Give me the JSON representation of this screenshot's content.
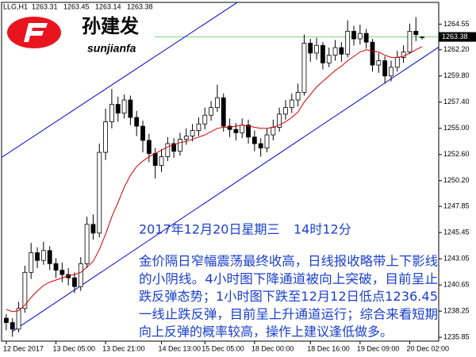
{
  "logo": {
    "name": "孙建发",
    "site": "sunjianfa"
  },
  "chart_data": {
    "type": "candlestick",
    "title": "LLG,H1",
    "categories": [
      "12 Dec 2017",
      null,
      null,
      null,
      null,
      null,
      null,
      null,
      "13 Dec 05:00",
      null,
      null,
      null,
      null,
      null,
      null,
      null,
      "13 Dec 21:00",
      null,
      null,
      null,
      null,
      null,
      null,
      null,
      null,
      "14 Dec 13:00",
      null,
      null,
      null,
      null,
      null,
      null,
      "15 Dec 05:00",
      null,
      null,
      null,
      null,
      null,
      null,
      null,
      "18 Dec 00:00",
      null,
      null,
      null,
      null,
      null,
      null,
      null,
      null,
      "18 Dec 16:00",
      null,
      null,
      null,
      null,
      null,
      null,
      null,
      "19 Dec 09:00",
      null,
      null,
      null,
      null,
      null,
      null,
      null,
      "20 Dec 02:00",
      null,
      null
    ],
    "open": [
      1237.6,
      1237.2,
      1236.6,
      1238.5,
      1241.8,
      1243.6,
      1242.9,
      1243.8,
      1242.6,
      1242.0,
      1241.6,
      1241.3,
      1240.5,
      1242.6,
      1246.2,
      1245.4,
      1252.8,
      1255.6,
      1257.2,
      1256.4,
      1257.6,
      1256.0,
      1255.2,
      1253.9,
      1252.7,
      1251.6,
      1252.4,
      1253.6,
      1252.9,
      1254.0,
      1254.3,
      1254.8,
      1255.4,
      1256.2,
      1256.9,
      1257.8,
      1255.2,
      1254.9,
      1254.6,
      1255.3,
      1254.2,
      1253.6,
      1253.2,
      1254.4,
      1255.1,
      1256.3,
      1256.9,
      1257.6,
      1258.3,
      1262.8,
      1261.9,
      1262.6,
      1261.0,
      1261.7,
      1262.4,
      1261.8,
      1263.9,
      1263.2,
      1263.7,
      1262.9,
      1260.8,
      1261.2,
      1259.8,
      1260.6,
      1261.5,
      1262.0,
      1263.9,
      1263.31
    ],
    "high": [
      1238.0,
      1237.6,
      1239.1,
      1242.4,
      1244.5,
      1244.1,
      1244.6,
      1244.2,
      1243.1,
      1242.7,
      1242.2,
      1241.8,
      1243.2,
      1246.9,
      1247.1,
      1253.6,
      1256.8,
      1258.6,
      1257.9,
      1258.1,
      1258.0,
      1256.6,
      1255.7,
      1254.5,
      1253.2,
      1253.1,
      1254.2,
      1254.1,
      1254.6,
      1255.0,
      1255.4,
      1256.0,
      1256.9,
      1257.5,
      1259.0,
      1258.2,
      1255.9,
      1255.5,
      1255.9,
      1255.8,
      1254.8,
      1254.1,
      1255.0,
      1255.8,
      1256.9,
      1257.6,
      1258.2,
      1259.1,
      1263.6,
      1263.2,
      1263.3,
      1262.9,
      1262.4,
      1263.1,
      1262.9,
      1264.9,
      1264.4,
      1264.5,
      1264.1,
      1263.2,
      1261.9,
      1261.6,
      1261.2,
      1262.1,
      1262.6,
      1264.6,
      1265.2,
      1263.45
    ],
    "low": [
      1236.5,
      1235.9,
      1236.3,
      1238.1,
      1241.2,
      1242.2,
      1242.5,
      1242.0,
      1241.3,
      1240.9,
      1240.6,
      1239.9,
      1240.1,
      1242.2,
      1244.8,
      1245.0,
      1252.1,
      1255.0,
      1255.6,
      1255.9,
      1255.3,
      1254.3,
      1252.8,
      1251.9,
      1250.4,
      1251.0,
      1252.0,
      1252.3,
      1252.5,
      1253.5,
      1253.8,
      1254.3,
      1254.9,
      1255.7,
      1256.5,
      1254.7,
      1254.2,
      1253.9,
      1254.1,
      1253.6,
      1252.9,
      1252.4,
      1252.8,
      1253.9,
      1254.7,
      1255.8,
      1256.4,
      1257.0,
      1258.0,
      1261.1,
      1261.3,
      1260.4,
      1260.6,
      1261.2,
      1261.1,
      1261.5,
      1262.6,
      1262.7,
      1262.3,
      1260.2,
      1260.1,
      1259.1,
      1259.3,
      1260.2,
      1261.0,
      1261.8,
      1263.0,
      1263.14
    ],
    "close": [
      1237.2,
      1236.6,
      1238.5,
      1241.8,
      1243.6,
      1242.9,
      1243.8,
      1242.6,
      1242.0,
      1241.6,
      1241.3,
      1240.5,
      1242.6,
      1246.2,
      1245.4,
      1252.8,
      1255.6,
      1257.2,
      1256.4,
      1257.6,
      1256.0,
      1255.2,
      1253.9,
      1252.7,
      1251.6,
      1252.4,
      1253.6,
      1252.9,
      1254.0,
      1254.3,
      1254.8,
      1255.4,
      1256.2,
      1256.9,
      1257.8,
      1255.2,
      1254.9,
      1254.6,
      1255.3,
      1254.2,
      1253.6,
      1253.2,
      1254.4,
      1255.1,
      1256.3,
      1256.9,
      1257.6,
      1258.3,
      1262.8,
      1261.9,
      1262.6,
      1261.0,
      1261.7,
      1262.4,
      1261.8,
      1263.9,
      1263.2,
      1263.7,
      1262.9,
      1260.8,
      1261.2,
      1259.8,
      1260.6,
      1261.5,
      1262.0,
      1263.9,
      1263.6,
      1263.38
    ],
    "up_color": "#ffffff",
    "down_color": "#000000",
    "wick_color": "#000000",
    "ma": {
      "color": "#d00000",
      "values": [
        1238.4,
        1238.2,
        1238.3,
        1238.8,
        1239.5,
        1240.1,
        1240.6,
        1240.9,
        1241.1,
        1241.3,
        1241.5,
        1241.6,
        1241.8,
        1242.3,
        1242.8,
        1243.9,
        1245.3,
        1246.9,
        1248.2,
        1249.6,
        1250.7,
        1251.5,
        1252.0,
        1252.4,
        1252.7,
        1253.0,
        1253.3,
        1253.5,
        1253.7,
        1253.8,
        1254.0,
        1254.2,
        1254.4,
        1254.7,
        1255.0,
        1255.1,
        1255.1,
        1255.2,
        1255.3,
        1255.2,
        1255.1,
        1255.0,
        1255.0,
        1255.1,
        1255.3,
        1255.6,
        1256.0,
        1256.5,
        1257.4,
        1258.1,
        1258.8,
        1259.3,
        1259.8,
        1260.3,
        1260.7,
        1261.2,
        1261.6,
        1262.0,
        1262.2,
        1262.1,
        1262.0,
        1261.7,
        1261.5,
        1261.5,
        1261.6,
        1261.9,
        1262.2,
        1262.5
      ]
    },
    "trendlines": [
      {
        "color": "#0000cc",
        "x": [
          -1.01,
          37.35
        ],
        "y": [
          1252.24,
          1266.59
        ]
      },
      {
        "color": "#0000cc",
        "x": [
          0.9,
          70.6
        ],
        "y": [
          1236.36,
          1262.8
        ]
      }
    ],
    "price_line_color": "#7fd07f",
    "ylim": [
      1235.5,
      1266.4
    ],
    "yticks": [
      1264.55,
      {
        "value": 1262.2,
        "label": "1262.20"
      },
      {
        "value": 1259.8,
        "label": "1259.80"
      },
      {
        "value": 1257.4,
        "label": "1257.40"
      },
      {
        "value": 1255.0,
        "label": "1255.00"
      },
      {
        "value": 1252.6,
        "label": "1252.60"
      },
      {
        "value": 1250.2,
        "label": "1250.20"
      },
      1247.85,
      1245.45,
      1243.05,
      1240.65,
      1238.25,
      1235.85
    ],
    "annotation": {
      "color": "#1a3fcf",
      "date": "2017年12月20日星期三",
      "time": "14时12分",
      "lines": [
        "金价隔日窄幅震荡最终收高，日线报收略带上下影线",
        "的小阴线。4小时图下降通道被向上突破，目前呈止",
        "跌反弹态势；1小时图下跌至12月12日低点1236.45",
        "一线止跌反弹，目前呈上升通道运行；综合来看短期",
        "向上反弹的概率较高，操作上建议逢低做多。"
      ]
    }
  }
}
